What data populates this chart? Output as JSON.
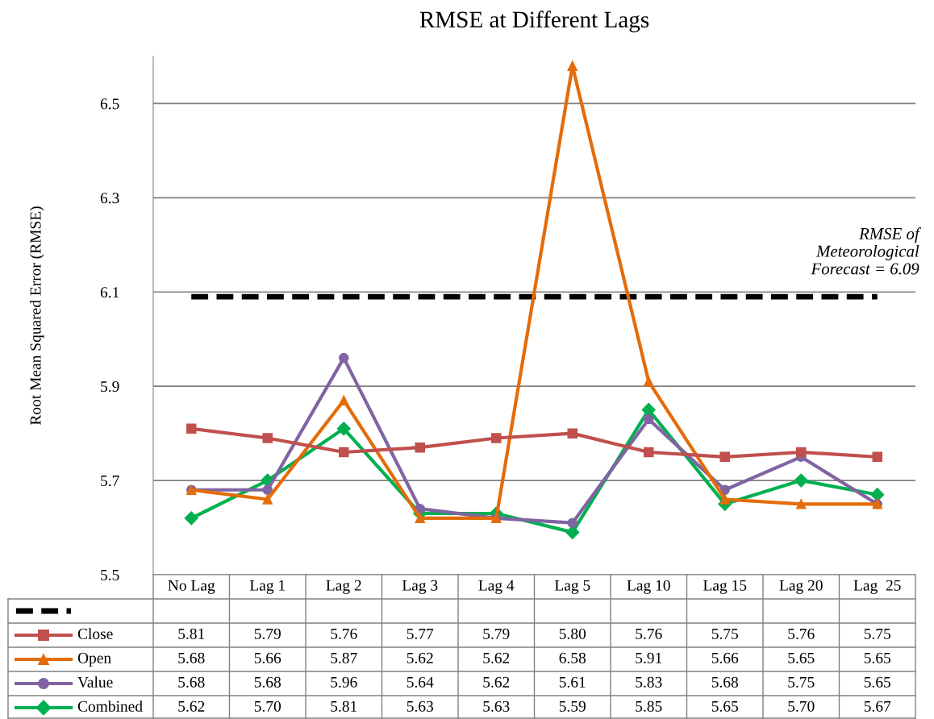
{
  "chart_data": {
    "type": "line",
    "title": "RMSE at Different Lags",
    "ylabel": "Root Mean Squared Error (RMSE)",
    "categories": [
      "No Lag",
      "Lag 1",
      "Lag 2",
      "Lag 3",
      "Lag 4",
      "Lag 5",
      "Lag 10",
      "Lag 15",
      "Lag 20",
      "Lag  25"
    ],
    "series": [
      {
        "name": "Close",
        "color": "#c0504d",
        "marker": "square",
        "values": [
          5.81,
          5.79,
          5.76,
          5.77,
          5.79,
          5.8,
          5.76,
          5.75,
          5.76,
          5.75
        ],
        "value_labels": [
          "5.81",
          "5.79",
          "5.76",
          "5.77",
          "5.79",
          "5.80",
          "5.76",
          "5.75",
          "5.76",
          "5.75"
        ]
      },
      {
        "name": "Open",
        "color": "#e46c0a",
        "marker": "triangle",
        "values": [
          5.68,
          5.66,
          5.87,
          5.62,
          5.62,
          6.58,
          5.91,
          5.66,
          5.65,
          5.65
        ],
        "value_labels": [
          "5.68",
          "5.66",
          "5.87",
          "5.62",
          "5.62",
          "6.58",
          "5.91",
          "5.66",
          "5.65",
          "5.65"
        ]
      },
      {
        "name": "Value",
        "color": "#8064a2",
        "marker": "circle",
        "values": [
          5.68,
          5.68,
          5.96,
          5.64,
          5.62,
          5.61,
          5.83,
          5.68,
          5.75,
          5.65
        ],
        "value_labels": [
          "5.68",
          "5.68",
          "5.96",
          "5.64",
          "5.62",
          "5.61",
          "5.83",
          "5.68",
          "5.75",
          "5.65"
        ]
      },
      {
        "name": "Combined",
        "color": "#00b050",
        "marker": "diamond",
        "values": [
          5.62,
          5.7,
          5.81,
          5.63,
          5.63,
          5.59,
          5.85,
          5.65,
          5.7,
          5.67
        ],
        "value_labels": [
          "5.62",
          "5.70",
          "5.81",
          "5.63",
          "5.63",
          "5.59",
          "5.85",
          "5.65",
          "5.70",
          "5.67"
        ]
      }
    ],
    "ref_lines": [
      {
        "axis": "y",
        "value": 6.09,
        "label": "RMSE of\nMeteorological\nForecast = 6.09",
        "color": "#000000",
        "line_style": "dashed"
      }
    ],
    "ylim": [
      5.5,
      6.6
    ],
    "yticks": [
      5.5,
      5.7,
      5.9,
      6.1,
      6.3,
      6.5
    ],
    "grid": "y",
    "legend": "bottom",
    "line_style": "solid"
  }
}
